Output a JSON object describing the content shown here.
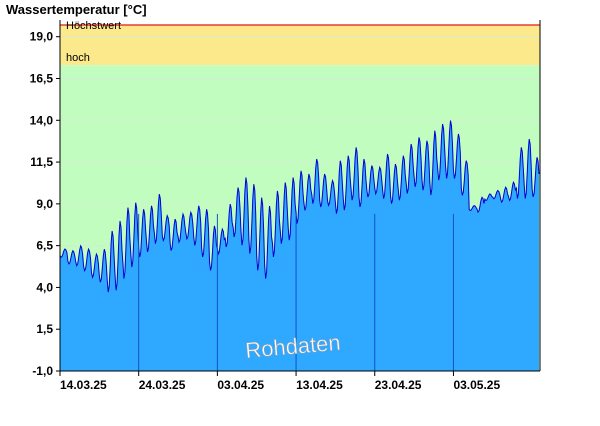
{
  "chart_data": {
    "type": "area",
    "title": "Wassertemperatur [°C]",
    "watermark": "Rohdaten",
    "ylim": [
      -1.0,
      20.0
    ],
    "yticks": [
      {
        "v": -1.0,
        "label": "-1,0"
      },
      {
        "v": 1.5,
        "label": "1,5"
      },
      {
        "v": 4.0,
        "label": "4,0"
      },
      {
        "v": 6.5,
        "label": "6,5"
      },
      {
        "v": 9.0,
        "label": "9,0"
      },
      {
        "v": 11.5,
        "label": "11,5"
      },
      {
        "v": 14.0,
        "label": "14,0"
      },
      {
        "v": 16.5,
        "label": "16,5"
      },
      {
        "v": 19.0,
        "label": "19,0"
      }
    ],
    "xticks": [
      {
        "date": "2025-03-14",
        "label": "14.03.25"
      },
      {
        "date": "2025-03-24",
        "label": "24.03.25"
      },
      {
        "date": "2025-04-03",
        "label": "03.04.25"
      },
      {
        "date": "2025-04-13",
        "label": "13.04.25"
      },
      {
        "date": "2025-04-23",
        "label": "23.04.25"
      },
      {
        "date": "2025-05-03",
        "label": "03.05.25"
      }
    ],
    "x_range": [
      "2025-03-14",
      "2025-05-13"
    ],
    "bands": [
      {
        "label": "Höchstwert",
        "from": 19.7,
        "to": 20.0,
        "color": "#ffffff"
      },
      {
        "label": "hoch",
        "from": 17.3,
        "to": 19.7,
        "color": "#fce98c"
      },
      {
        "label": "",
        "from": -1.0,
        "to": 17.3,
        "color": "#c2fdc0"
      }
    ],
    "threshold_line": {
      "value": 19.7,
      "color": "#e01818"
    },
    "colors": {
      "fill": "#2ea9ff",
      "line": "#0000d0",
      "grid": "#d4ecd2",
      "week_lines": "#1550c8"
    },
    "series": [
      {
        "values": [
          [
            "2025-03-14",
            5.8,
            6.3
          ],
          [
            "2025-03-15",
            5.4,
            6.2
          ],
          [
            "2025-03-16",
            5.3,
            6.5
          ],
          [
            "2025-03-17",
            5.0,
            6.3
          ],
          [
            "2025-03-18",
            4.6,
            6.0
          ],
          [
            "2025-03-19",
            4.3,
            6.3
          ],
          [
            "2025-03-20",
            3.7,
            7.4
          ],
          [
            "2025-03-21",
            3.8,
            8.0
          ],
          [
            "2025-03-22",
            4.5,
            8.8
          ],
          [
            "2025-03-23",
            5.2,
            9.1
          ],
          [
            "2025-03-24",
            5.8,
            8.7
          ],
          [
            "2025-03-25",
            6.1,
            8.9
          ],
          [
            "2025-03-26",
            6.6,
            9.6
          ],
          [
            "2025-03-27",
            6.8,
            8.3
          ],
          [
            "2025-03-28",
            6.2,
            8.1
          ],
          [
            "2025-03-29",
            6.7,
            8.4
          ],
          [
            "2025-03-30",
            6.9,
            8.5
          ],
          [
            "2025-03-31",
            6.5,
            8.9
          ],
          [
            "2025-04-01",
            5.8,
            8.7
          ],
          [
            "2025-04-02",
            5.0,
            7.7
          ],
          [
            "2025-04-03",
            6.0,
            7.5
          ],
          [
            "2025-04-04",
            6.4,
            9.0
          ],
          [
            "2025-04-05",
            7.0,
            10.0
          ],
          [
            "2025-04-06",
            6.5,
            10.6
          ],
          [
            "2025-04-07",
            6.0,
            10.2
          ],
          [
            "2025-04-08",
            5.0,
            9.4
          ],
          [
            "2025-04-09",
            4.5,
            8.9
          ],
          [
            "2025-04-10",
            5.8,
            9.8
          ],
          [
            "2025-04-11",
            6.6,
            10.3
          ],
          [
            "2025-04-12",
            6.8,
            10.6
          ],
          [
            "2025-04-13",
            7.8,
            11.0
          ],
          [
            "2025-04-14",
            8.6,
            10.8
          ],
          [
            "2025-04-15",
            9.0,
            11.7
          ],
          [
            "2025-04-16",
            8.8,
            10.8
          ],
          [
            "2025-04-17",
            8.9,
            10.4
          ],
          [
            "2025-04-18",
            8.4,
            11.6
          ],
          [
            "2025-04-19",
            8.6,
            11.9
          ],
          [
            "2025-04-20",
            9.2,
            12.4
          ],
          [
            "2025-04-21",
            8.8,
            11.7
          ],
          [
            "2025-04-22",
            9.4,
            11.3
          ],
          [
            "2025-04-23",
            9.6,
            11.2
          ],
          [
            "2025-04-24",
            9.3,
            12.0
          ],
          [
            "2025-04-25",
            9.0,
            11.4
          ],
          [
            "2025-04-26",
            9.2,
            11.9
          ],
          [
            "2025-04-27",
            9.6,
            12.6
          ],
          [
            "2025-04-28",
            10.0,
            13.0
          ],
          [
            "2025-04-29",
            9.8,
            12.8
          ],
          [
            "2025-04-30",
            9.5,
            13.4
          ],
          [
            "2025-05-01",
            10.4,
            13.8
          ],
          [
            "2025-05-02",
            10.5,
            14.0
          ],
          [
            "2025-05-03",
            10.5,
            13.2
          ],
          [
            "2025-05-04",
            9.5,
            11.6
          ],
          [
            "2025-05-05",
            8.6,
            8.9
          ],
          [
            "2025-05-06",
            8.5,
            9.4
          ],
          [
            "2025-05-07",
            9.2,
            9.6
          ],
          [
            "2025-05-08",
            9.3,
            9.8
          ],
          [
            "2025-05-09",
            9.1,
            10.0
          ],
          [
            "2025-05-10",
            9.2,
            10.3
          ],
          [
            "2025-05-11",
            9.3,
            12.4
          ],
          [
            "2025-05-12",
            9.3,
            12.9
          ],
          [
            "2025-05-13",
            9.4,
            11.8
          ]
        ]
      }
    ]
  }
}
